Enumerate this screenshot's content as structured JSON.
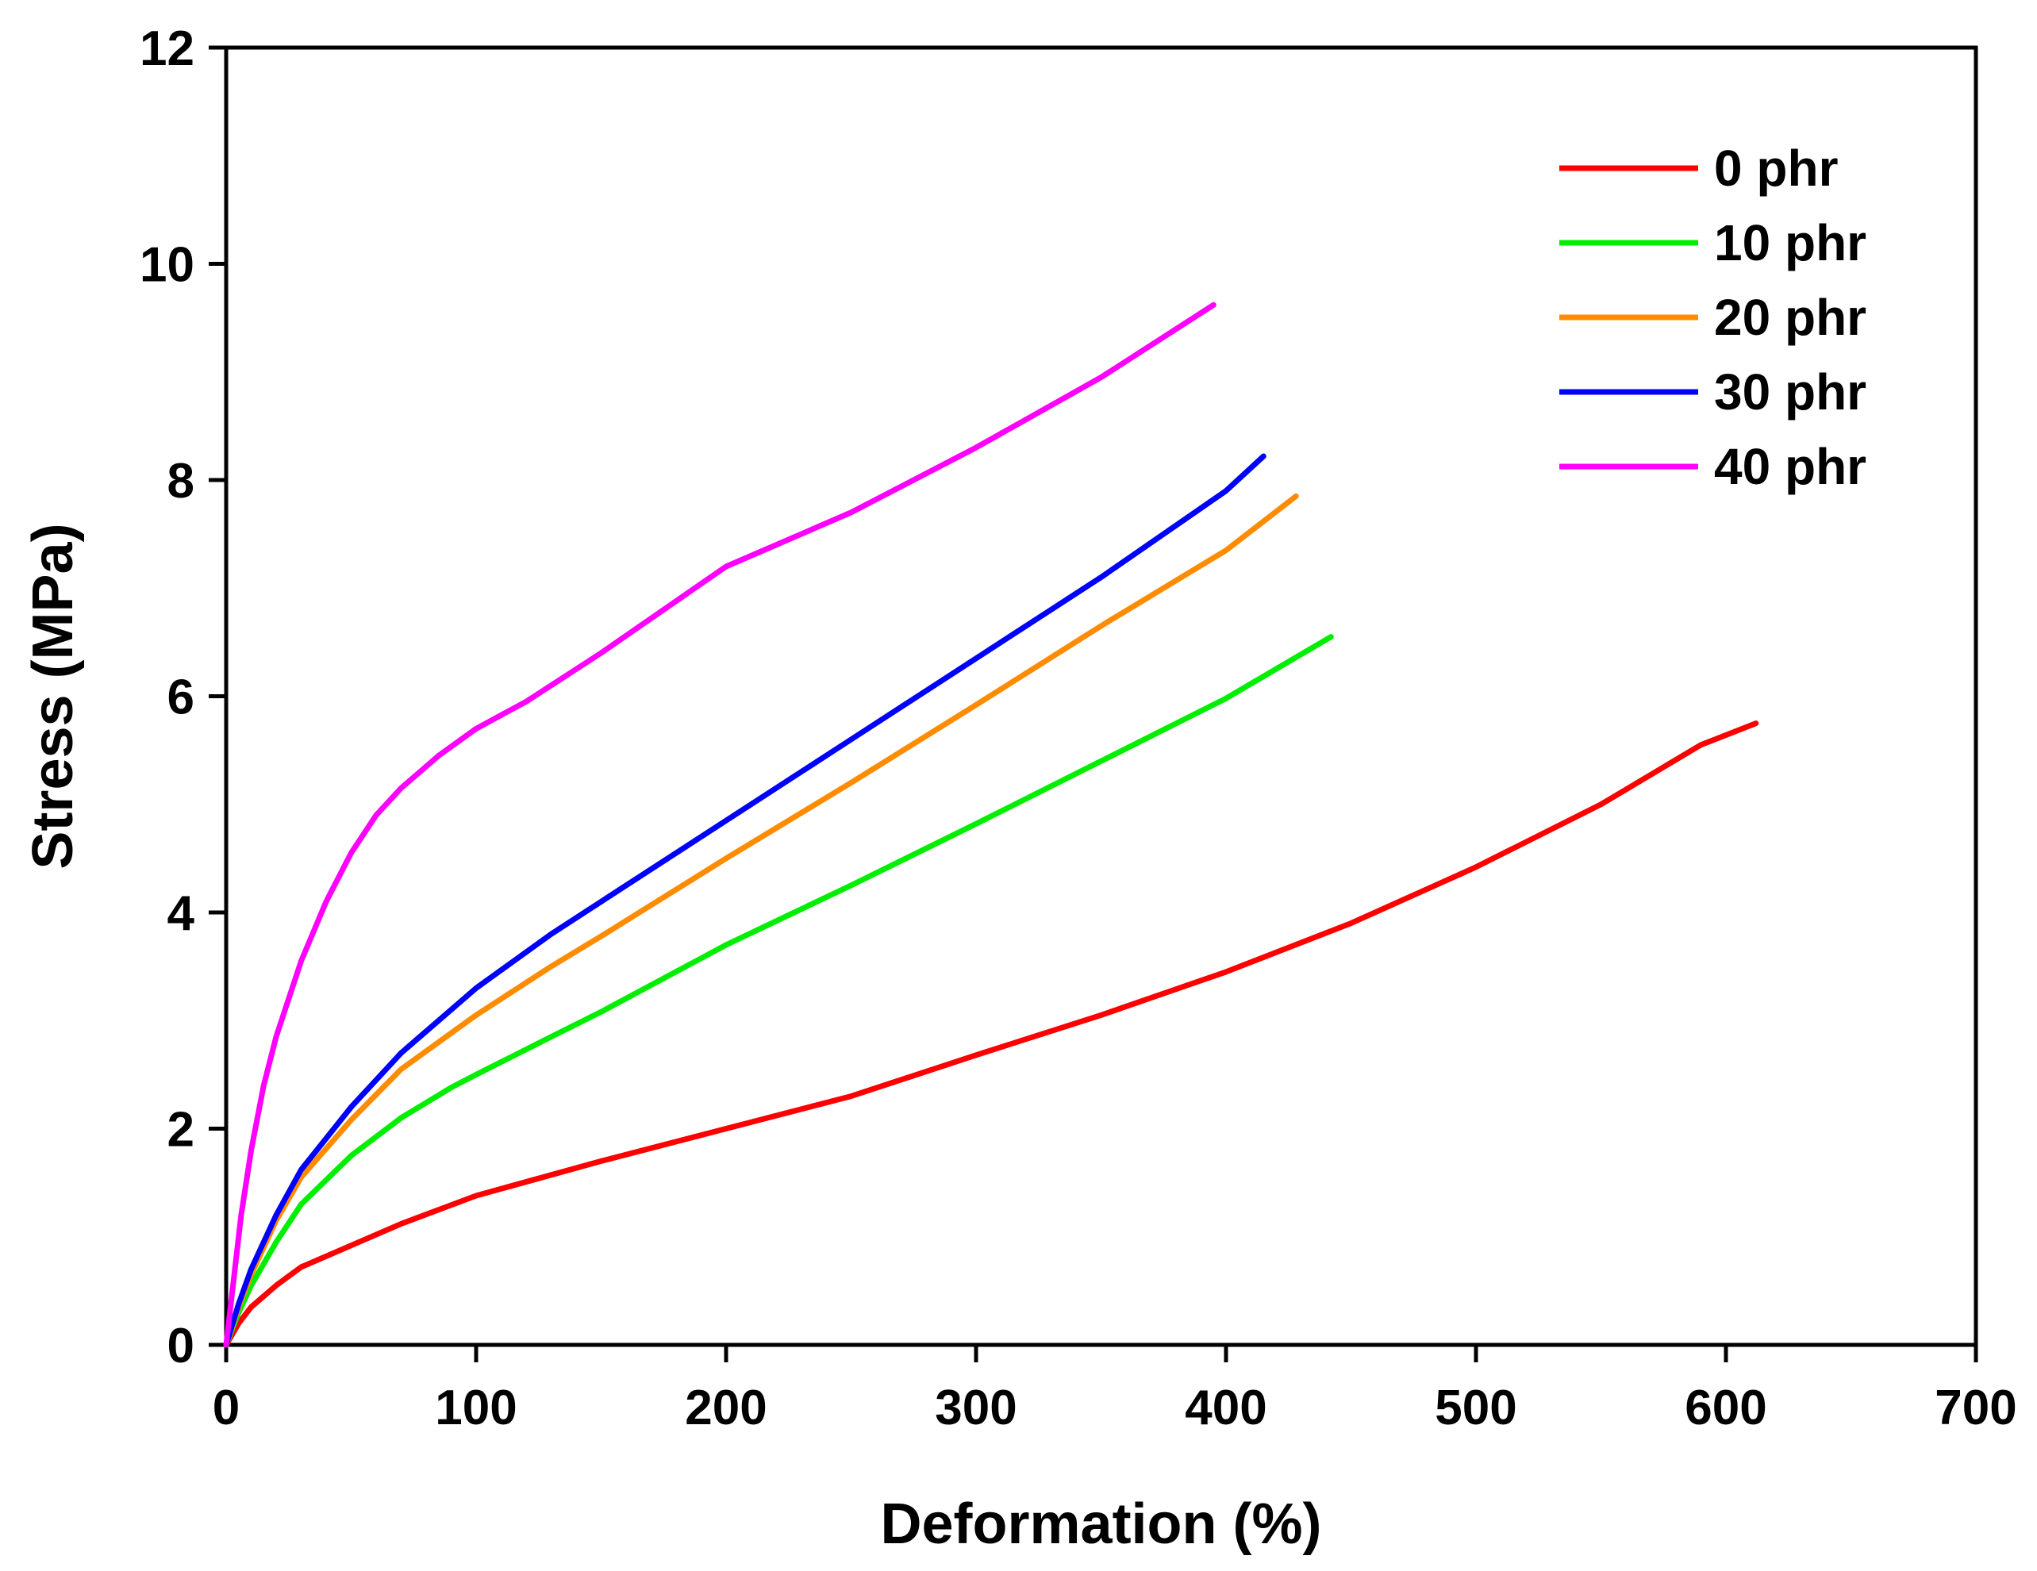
{
  "chart_data": {
    "type": "line",
    "title": "",
    "xlabel": "Deformation (%)",
    "ylabel": "Stress (MPa)",
    "xlim": [
      0,
      700
    ],
    "ylim": [
      0,
      12
    ],
    "xticks": [
      0,
      100,
      200,
      300,
      400,
      500,
      600,
      700
    ],
    "yticks": [
      0,
      2,
      4,
      6,
      8,
      10,
      12
    ],
    "grid": false,
    "legend_position": "top-right",
    "series": [
      {
        "name": "0 phr",
        "color": "#ff0000",
        "points": [
          [
            0,
            0
          ],
          [
            5,
            0.2
          ],
          [
            10,
            0.35
          ],
          [
            20,
            0.55
          ],
          [
            30,
            0.72
          ],
          [
            50,
            0.92
          ],
          [
            70,
            1.12
          ],
          [
            100,
            1.38
          ],
          [
            150,
            1.7
          ],
          [
            200,
            2.0
          ],
          [
            250,
            2.3
          ],
          [
            300,
            2.68
          ],
          [
            350,
            3.05
          ],
          [
            400,
            3.45
          ],
          [
            450,
            3.9
          ],
          [
            500,
            4.42
          ],
          [
            550,
            5.0
          ],
          [
            590,
            5.55
          ],
          [
            612,
            5.75
          ]
        ]
      },
      {
        "name": "10 phr",
        "color": "#00ee00",
        "points": [
          [
            0,
            0
          ],
          [
            5,
            0.3
          ],
          [
            10,
            0.55
          ],
          [
            20,
            0.95
          ],
          [
            30,
            1.3
          ],
          [
            50,
            1.75
          ],
          [
            70,
            2.1
          ],
          [
            90,
            2.38
          ],
          [
            100,
            2.5
          ],
          [
            130,
            2.85
          ],
          [
            150,
            3.08
          ],
          [
            200,
            3.7
          ],
          [
            250,
            4.25
          ],
          [
            300,
            4.82
          ],
          [
            350,
            5.4
          ],
          [
            400,
            5.98
          ],
          [
            442,
            6.55
          ]
        ]
      },
      {
        "name": "20 phr",
        "color": "#ff8c00",
        "points": [
          [
            0,
            0
          ],
          [
            5,
            0.35
          ],
          [
            10,
            0.65
          ],
          [
            20,
            1.15
          ],
          [
            30,
            1.55
          ],
          [
            50,
            2.08
          ],
          [
            70,
            2.55
          ],
          [
            100,
            3.05
          ],
          [
            130,
            3.5
          ],
          [
            150,
            3.78
          ],
          [
            200,
            4.5
          ],
          [
            250,
            5.2
          ],
          [
            300,
            5.92
          ],
          [
            350,
            6.65
          ],
          [
            400,
            7.35
          ],
          [
            428,
            7.85
          ]
        ]
      },
      {
        "name": "30 phr",
        "color": "#0000ff",
        "points": [
          [
            0,
            0
          ],
          [
            5,
            0.38
          ],
          [
            10,
            0.7
          ],
          [
            20,
            1.2
          ],
          [
            30,
            1.62
          ],
          [
            50,
            2.2
          ],
          [
            70,
            2.7
          ],
          [
            100,
            3.3
          ],
          [
            130,
            3.8
          ],
          [
            150,
            4.1
          ],
          [
            200,
            4.85
          ],
          [
            250,
            5.6
          ],
          [
            300,
            6.35
          ],
          [
            350,
            7.1
          ],
          [
            400,
            7.9
          ],
          [
            415,
            8.22
          ]
        ]
      },
      {
        "name": "40 phr",
        "color": "#ff00ff",
        "points": [
          [
            0,
            0
          ],
          [
            3,
            0.6
          ],
          [
            6,
            1.2
          ],
          [
            10,
            1.8
          ],
          [
            15,
            2.4
          ],
          [
            20,
            2.85
          ],
          [
            30,
            3.55
          ],
          [
            40,
            4.1
          ],
          [
            50,
            4.55
          ],
          [
            60,
            4.9
          ],
          [
            70,
            5.15
          ],
          [
            85,
            5.45
          ],
          [
            100,
            5.7
          ],
          [
            120,
            5.95
          ],
          [
            150,
            6.4
          ],
          [
            200,
            7.2
          ],
          [
            250,
            7.7
          ],
          [
            300,
            8.3
          ],
          [
            350,
            8.95
          ],
          [
            395,
            9.62
          ]
        ]
      }
    ]
  }
}
